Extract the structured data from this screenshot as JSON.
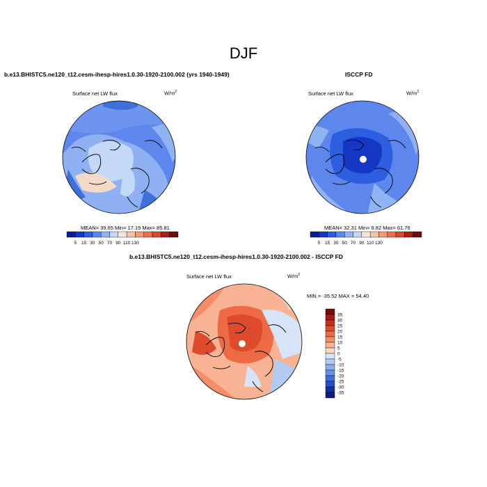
{
  "figure": {
    "season_title": "DJF",
    "panel_left": {
      "title": "b.e13.BHISTC5.ne120_t12.cesm-ihesp-hires1.0.30-1920-2100.002 (yrs 1940-1949)",
      "variable": "Surface net LW flux",
      "units": "W/m",
      "units_exp": "2",
      "stats": "MEAN=  39.65  Min=  17.19  Max=  85.81"
    },
    "panel_right": {
      "title": "ISCCP FD",
      "variable": "Surface net LW flux",
      "units": "W/m",
      "units_exp": "2",
      "stats": "MEAN=  32.31  Min=   9.82  Max=  61.76"
    },
    "panel_diff": {
      "title": "b.e13.BHISTC5.ne120_t12.cesm-ihesp-hires1.0.30-1920-2100.002 - ISCCP FD",
      "variable": "Surface net LW flux",
      "units": "W/m",
      "units_exp": "2",
      "stats": "MIN = -35.52 MAX =  54.40"
    },
    "abs_colorbar": {
      "labels": [
        "5",
        "15",
        "30",
        "50",
        "70",
        "90",
        "110",
        "130"
      ],
      "colors": [
        "#0a1f8f",
        "#1537c6",
        "#2e5ee0",
        "#5d87ec",
        "#90b3f4",
        "#c4d8f8",
        "#f2e6dc",
        "#f6c1a6",
        "#f29a78",
        "#e8704e",
        "#d24a2f",
        "#a8201a",
        "#6e0b0b"
      ]
    },
    "diff_colorbar": {
      "labels": [
        "35",
        "30",
        "25",
        "20",
        "15",
        "10",
        "5",
        "0",
        "-5",
        "-10",
        "-15",
        "-20",
        "-25",
        "-30",
        "-35"
      ],
      "colors": [
        "#7a0a0a",
        "#a81a12",
        "#c8301c",
        "#dd4b2c",
        "#ec6b45",
        "#f48e68",
        "#f8b394",
        "#fbd6c4",
        "#d7e4f7",
        "#b3cbf2",
        "#8cb0ec",
        "#6391e4",
        "#3f6fd9",
        "#2650c6",
        "#13319e",
        "#0a1f7a"
      ]
    }
  }
}
